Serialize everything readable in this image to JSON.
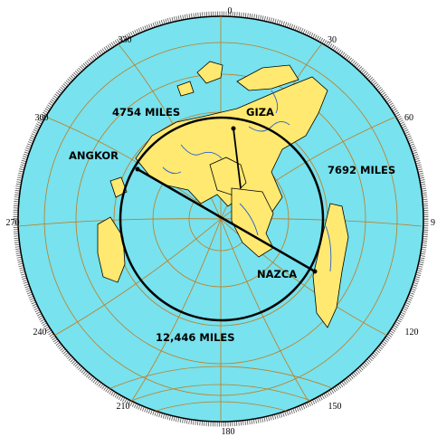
{
  "map": {
    "colors": {
      "ocean": "#78e2ee",
      "land": "#ffe970",
      "grid": "#c27a1c",
      "rivers": "#2a5fd0",
      "routes": "#000000"
    },
    "bearings": {
      "b0": "0",
      "b30": "30",
      "b60": "60",
      "b90": "9",
      "b120": "120",
      "b150": "150",
      "b180": "180",
      "b210": "210",
      "b240": "240",
      "b270": "270",
      "b300": "300",
      "b330": "330"
    },
    "sites": {
      "angkor": "ANGKOR",
      "giza": "GIZA",
      "nazca": "NAZCA"
    },
    "distances": {
      "angkor_giza": "4754 MILES",
      "giza_nazca": "7692 MILES",
      "circle": "12,446 MILES"
    }
  }
}
